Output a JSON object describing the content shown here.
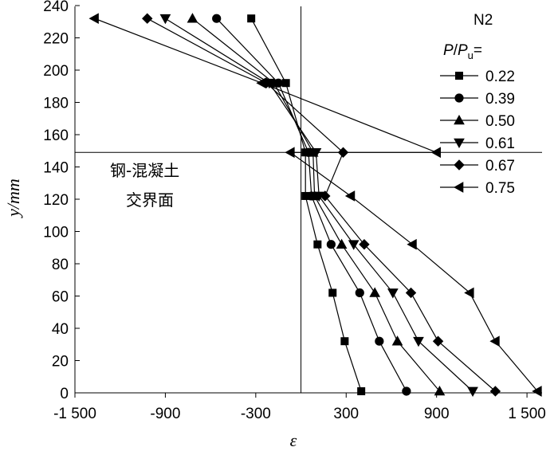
{
  "chart_data": {
    "type": "line",
    "xlabel": "ε",
    "ylabel": "y/mm",
    "xlim": [
      -1500,
      1600
    ],
    "ylim": [
      0,
      240
    ],
    "x_ticks": [
      -1500,
      -900,
      -300,
      300,
      900,
      1500
    ],
    "x_tick_labels": [
      "-1 500",
      "-900",
      "-300",
      "300",
      "900",
      "1 500"
    ],
    "y_ticks": [
      0,
      20,
      40,
      60,
      80,
      100,
      120,
      140,
      160,
      180,
      200,
      220,
      240
    ],
    "y_tick_labels": [
      "0",
      "20",
      "40",
      "60",
      "80",
      "100",
      "120",
      "140",
      "160",
      "180",
      "200",
      "220",
      "240"
    ],
    "reference_lines": {
      "x": 0,
      "y": 149
    },
    "annotation": [
      "钢-混凝土",
      "交界面"
    ],
    "legend": {
      "title_line1": "N2",
      "title_line2": "P/Pu=",
      "placement": "top-right"
    },
    "series": [
      {
        "name": "0.22",
        "marker": "square",
        "points": [
          [
            -330,
            232
          ],
          [
            -100,
            192
          ],
          [
            30,
            149
          ],
          [
            30,
            122
          ],
          [
            110,
            92
          ],
          [
            210,
            62
          ],
          [
            290,
            32
          ],
          [
            400,
            1
          ]
        ]
      },
      {
        "name": "0.39",
        "marker": "circle",
        "points": [
          [
            -560,
            232
          ],
          [
            -150,
            192
          ],
          [
            50,
            149
          ],
          [
            70,
            122
          ],
          [
            200,
            92
          ],
          [
            390,
            62
          ],
          [
            520,
            32
          ],
          [
            700,
            1
          ]
        ]
      },
      {
        "name": "0.50",
        "marker": "triangle-up",
        "points": [
          [
            -720,
            232
          ],
          [
            -180,
            192
          ],
          [
            80,
            149
          ],
          [
            90,
            122
          ],
          [
            270,
            92
          ],
          [
            490,
            62
          ],
          [
            640,
            32
          ],
          [
            920,
            1
          ]
        ]
      },
      {
        "name": "0.61",
        "marker": "triangle-down",
        "points": [
          [
            -900,
            232
          ],
          [
            -210,
            192
          ],
          [
            100,
            149
          ],
          [
            120,
            122
          ],
          [
            350,
            92
          ],
          [
            610,
            62
          ],
          [
            780,
            32
          ],
          [
            1140,
            1
          ]
        ]
      },
      {
        "name": "0.67",
        "marker": "diamond",
        "points": [
          [
            -1020,
            232
          ],
          [
            -230,
            192
          ],
          [
            280,
            149
          ],
          [
            160,
            122
          ],
          [
            420,
            92
          ],
          [
            730,
            62
          ],
          [
            910,
            32
          ],
          [
            1290,
            1
          ]
        ]
      },
      {
        "name": "0.75",
        "marker": "triangle-left",
        "points": [
          [
            -1370,
            232
          ],
          [
            -260,
            192
          ],
          [
            900,
            149
          ],
          [
            -70,
            149
          ],
          [
            330,
            122
          ],
          [
            740,
            92
          ],
          [
            1120,
            62
          ],
          [
            1290,
            32
          ],
          [
            1570,
            1
          ]
        ]
      }
    ]
  }
}
